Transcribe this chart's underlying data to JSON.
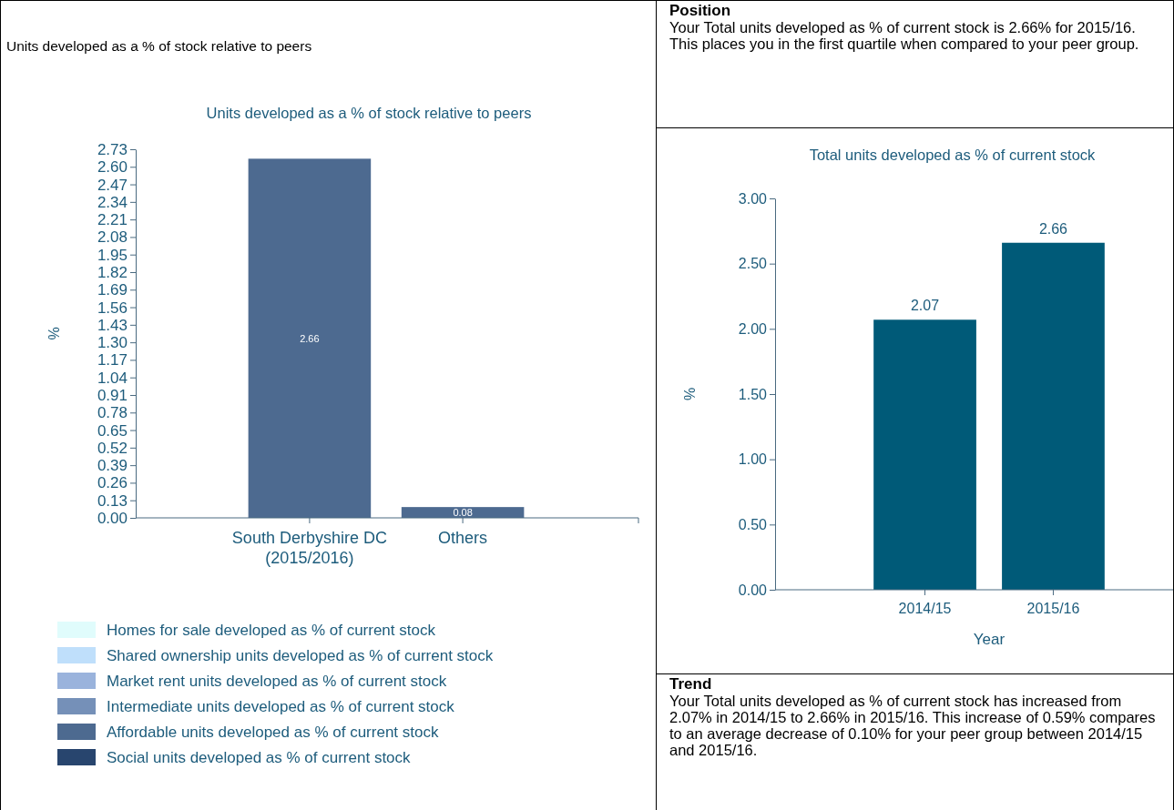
{
  "chart_data": [
    {
      "type": "bar",
      "title": "Units developed as a % of stock relative to peers",
      "ylabel": "%",
      "annotations": [
        "Units developed as a % of stock relative to peers"
      ],
      "categories": [
        "South Derbyshire DC (2015/2016)",
        "Others"
      ],
      "ylim": [
        0,
        2.73
      ],
      "yticks": [
        {
          "value": 0,
          "label": "0.00"
        },
        {
          "value": 0.13,
          "label": "0.13"
        },
        {
          "value": 0.26,
          "label": "0.26"
        },
        {
          "value": 0.39,
          "label": "0.39"
        },
        {
          "value": 0.52,
          "label": "0.52"
        },
        {
          "value": 0.65,
          "label": "0.65"
        },
        {
          "value": 0.78,
          "label": "0.78"
        },
        {
          "value": 0.91,
          "label": "0.91"
        },
        {
          "value": 1.04,
          "label": "1.04"
        },
        {
          "value": 1.17,
          "label": "1.17"
        },
        {
          "value": 1.3,
          "label": "1.30"
        },
        {
          "value": 1.43,
          "label": "1.43"
        },
        {
          "value": 1.56,
          "label": "1.56"
        },
        {
          "value": 1.69,
          "label": "1.69"
        },
        {
          "value": 1.82,
          "label": "1.82"
        },
        {
          "value": 1.95,
          "label": "1.95"
        },
        {
          "value": 2.08,
          "label": "2.08"
        },
        {
          "value": 2.21,
          "label": "2.21"
        },
        {
          "value": 2.34,
          "label": "2.34"
        },
        {
          "value": 2.47,
          "label": "2.47"
        },
        {
          "value": 2.6,
          "label": "2.60"
        },
        {
          "value": 2.73,
          "label": "2.73"
        }
      ],
      "data_labels": true,
      "legend": "bottom",
      "grid": false,
      "series": [
        {
          "name": "Homes for sale developed as % of current stock",
          "color": "#e0fcfc",
          "values": [
            null,
            null
          ]
        },
        {
          "name": "Shared ownership units developed as % of current stock",
          "color": "#bfdffb",
          "values": [
            null,
            null
          ]
        },
        {
          "name": "Market rent units developed as % of current stock",
          "color": "#9ab3dc",
          "values": [
            null,
            null
          ]
        },
        {
          "name": "Intermediate units developed as % of current stock",
          "color": "#7590b8",
          "values": [
            null,
            null
          ]
        },
        {
          "name": "Affordable units developed as % of current stock",
          "color": "#4d6a90",
          "values": [
            2.66,
            0.08
          ]
        },
        {
          "name": "Social units developed as % of current stock",
          "color": "#28456e",
          "values": [
            null,
            null
          ]
        }
      ]
    },
    {
      "type": "other",
      "title": "Position",
      "annotations": [
        "Your Total units developed as % of current stock is 2.66% for 2015/16. This places you in the first quartile when compared to your peer group."
      ]
    },
    {
      "type": "bar",
      "title": "Total units developed as % of current stock",
      "xlabel": "Year",
      "ylabel": "%",
      "categories": [
        "2014/15",
        "2015/16"
      ],
      "values": [
        2.07,
        2.66
      ],
      "color": "#005a78",
      "data_labels": true,
      "grid": false,
      "ylim": [
        0,
        3
      ],
      "yticks": [
        {
          "value": 0,
          "label": "0.00"
        },
        {
          "value": 0.5,
          "label": "0.50"
        },
        {
          "value": 1,
          "label": "1.00"
        },
        {
          "value": 1.5,
          "label": "1.50"
        },
        {
          "value": 2,
          "label": "2.00"
        },
        {
          "value": 2.5,
          "label": "2.50"
        },
        {
          "value": 3,
          "label": "3.00"
        }
      ]
    },
    {
      "type": "other",
      "title": "Trend",
      "annotations": [
        "Your Total units developed as % of current stock has increased from 2.07% in 2014/15 to 2.66% in 2015/16. This increase of 0.59% compares to an average decrease of 0.10% for your peer group between 2014/15 and 2015/16."
      ]
    }
  ]
}
